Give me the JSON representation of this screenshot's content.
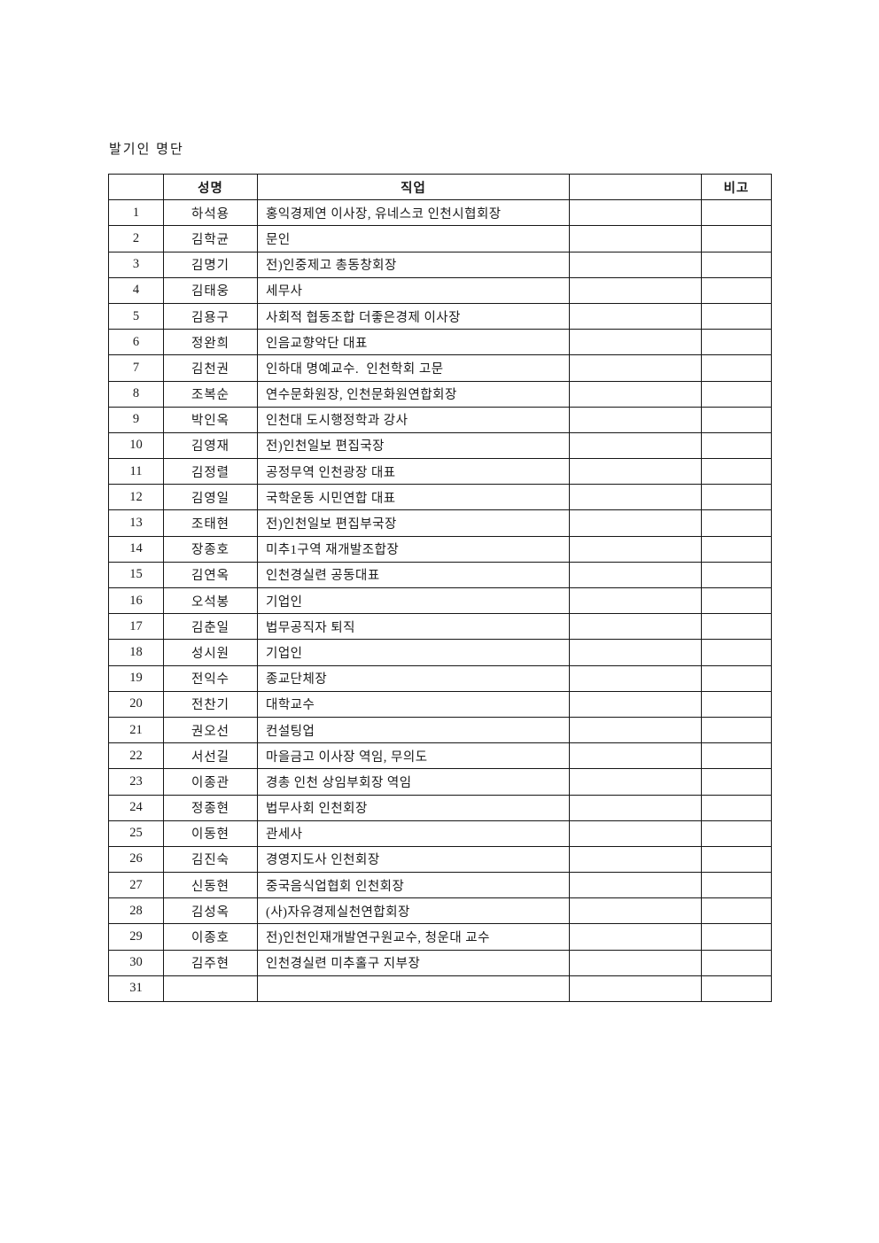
{
  "page": {
    "title": "발기인 명단"
  },
  "table": {
    "headers": [
      "",
      "성명",
      "직업",
      "",
      "비고"
    ],
    "rows": [
      {
        "no": "1",
        "name": "하석용",
        "occupation": "홍익경제연 이사장, 유네스코 인천시협회장",
        "blank": "",
        "note": ""
      },
      {
        "no": "2",
        "name": "김학균",
        "occupation": "문인",
        "blank": "",
        "note": ""
      },
      {
        "no": "3",
        "name": "김명기",
        "occupation": "전)인중제고 총동창회장",
        "blank": "",
        "note": ""
      },
      {
        "no": "4",
        "name": "김태웅",
        "occupation": "세무사",
        "blank": "",
        "note": ""
      },
      {
        "no": "5",
        "name": "김용구",
        "occupation": "사회적 협동조합 더좋은경제 이사장",
        "blank": "",
        "note": ""
      },
      {
        "no": "6",
        "name": "정완희",
        "occupation": "인음교향악단 대표",
        "blank": "",
        "note": ""
      },
      {
        "no": "7",
        "name": "김천권",
        "occupation": "인하대 명예교수.  인천학회 고문",
        "blank": "",
        "note": ""
      },
      {
        "no": "8",
        "name": "조복순",
        "occupation": "연수문화원장, 인천문화원연합회장",
        "blank": "",
        "note": ""
      },
      {
        "no": "9",
        "name": "박인옥",
        "occupation": "인천대 도시행정학과 강사",
        "blank": "",
        "note": ""
      },
      {
        "no": "10",
        "name": "김영재",
        "occupation": "전)인천일보 편집국장",
        "blank": "",
        "note": ""
      },
      {
        "no": "11",
        "name": "김정렬",
        "occupation": "공정무역 인천광장 대표",
        "blank": "",
        "note": ""
      },
      {
        "no": "12",
        "name": "김영일",
        "occupation": "국학운동 시민연합 대표",
        "blank": "",
        "note": ""
      },
      {
        "no": "13",
        "name": "조태현",
        "occupation": "전)인천일보 편집부국장",
        "blank": "",
        "note": ""
      },
      {
        "no": "14",
        "name": "장종호",
        "occupation": "미추1구역 재개발조합장",
        "blank": "",
        "note": ""
      },
      {
        "no": "15",
        "name": "김연옥",
        "occupation": "인천경실련 공동대표",
        "blank": "",
        "note": ""
      },
      {
        "no": "16",
        "name": "오석봉",
        "occupation": "기업인",
        "blank": "",
        "note": ""
      },
      {
        "no": "17",
        "name": "김춘일",
        "occupation": "법무공직자 퇴직",
        "blank": "",
        "note": ""
      },
      {
        "no": "18",
        "name": "성시원",
        "occupation": "기업인",
        "blank": "",
        "note": ""
      },
      {
        "no": "19",
        "name": "전익수",
        "occupation": "종교단체장",
        "blank": "",
        "note": ""
      },
      {
        "no": "20",
        "name": "전찬기",
        "occupation": "대학교수",
        "blank": "",
        "note": ""
      },
      {
        "no": "21",
        "name": "권오선",
        "occupation": "컨설팅업",
        "blank": "",
        "note": ""
      },
      {
        "no": "22",
        "name": "서선길",
        "occupation": "마을금고 이사장 역임, 무의도",
        "blank": "",
        "note": ""
      },
      {
        "no": "23",
        "name": "이종관",
        "occupation": "경총 인천 상임부회장 역임",
        "blank": "",
        "note": ""
      },
      {
        "no": "24",
        "name": "정종현",
        "occupation": "법무사회 인천회장",
        "blank": "",
        "note": ""
      },
      {
        "no": "25",
        "name": "이동현",
        "occupation": "관세사",
        "blank": "",
        "note": ""
      },
      {
        "no": "26",
        "name": "김진숙",
        "occupation": "경영지도사 인천회장",
        "blank": "",
        "note": ""
      },
      {
        "no": "27",
        "name": "신동현",
        "occupation": "중국음식업협회 인천회장",
        "blank": "",
        "note": ""
      },
      {
        "no": "28",
        "name": "김성옥",
        "occupation": "(사)자유경제실천연합회장",
        "blank": "",
        "note": ""
      },
      {
        "no": "29",
        "name": "이종호",
        "occupation": "전)인천인재개발연구원교수, 청운대 교수",
        "blank": "",
        "note": ""
      },
      {
        "no": "30",
        "name": "김주현",
        "occupation": "인천경실련 미추홀구 지부장",
        "blank": "",
        "note": ""
      },
      {
        "no": "31",
        "name": "",
        "occupation": "",
        "blank": "",
        "note": ""
      }
    ]
  }
}
